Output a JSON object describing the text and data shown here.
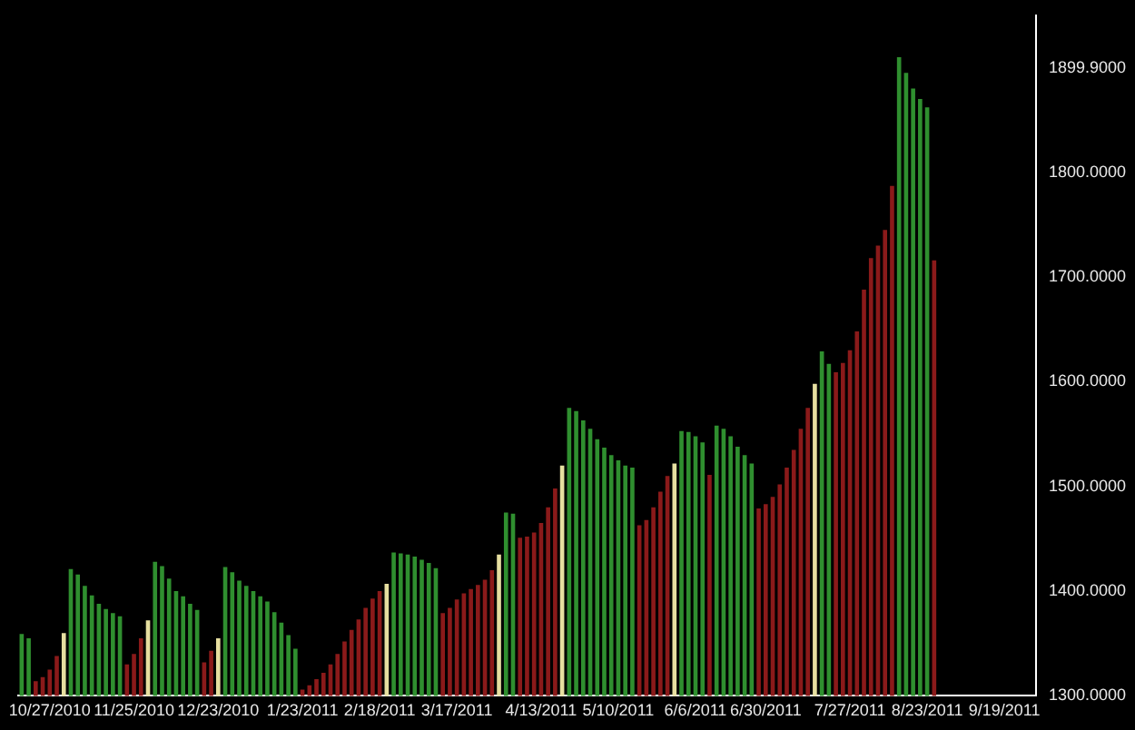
{
  "chart_data": {
    "type": "bar",
    "categories": [
      null,
      null,
      null,
      null,
      "10/27/2010",
      null,
      null,
      null,
      null,
      null,
      null,
      null,
      null,
      null,
      null,
      null,
      "11/25/2010",
      null,
      null,
      null,
      null,
      null,
      null,
      null,
      null,
      null,
      null,
      null,
      "12/23/2010",
      null,
      null,
      null,
      null,
      null,
      null,
      null,
      null,
      null,
      null,
      null,
      "1/23/2011",
      null,
      null,
      null,
      null,
      null,
      null,
      null,
      null,
      null,
      null,
      "2/18/2011",
      null,
      null,
      null,
      null,
      null,
      null,
      null,
      null,
      null,
      null,
      "3/17/2011",
      null,
      null,
      null,
      null,
      null,
      null,
      null,
      null,
      null,
      null,
      null,
      "4/13/2011",
      null,
      null,
      null,
      null,
      null,
      null,
      null,
      null,
      null,
      null,
      "5/10/2011",
      null,
      null,
      null,
      null,
      null,
      null,
      null,
      null,
      null,
      null,
      "6/6/2011",
      null,
      null,
      null,
      null,
      null,
      null,
      null,
      null,
      null,
      "6/30/2011",
      null,
      null,
      null,
      null,
      null,
      null,
      null,
      null,
      null,
      null,
      null,
      "7/27/2011",
      null,
      null,
      null,
      null,
      null,
      null,
      null,
      null,
      null,
      null,
      "8/23/2011",
      null,
      null,
      null,
      null,
      null,
      null,
      null,
      null,
      null,
      null,
      "9/19/2011",
      null,
      null,
      null,
      null
    ],
    "values": [
      1359,
      1355,
      1314,
      1318,
      1325,
      1338,
      1360,
      1421,
      1416,
      1405,
      1396,
      1388,
      1383,
      1379,
      1376,
      1330,
      1340,
      1355,
      1372,
      1428,
      1424,
      1412,
      1400,
      1395,
      1388,
      1382,
      1332,
      1343,
      1355,
      1423,
      1418,
      1410,
      1405,
      1400,
      1395,
      1390,
      1380,
      1370,
      1358,
      1345,
      1306,
      1310,
      1316,
      1322,
      1330,
      1340,
      1352,
      1363,
      1373,
      1384,
      1393,
      1400,
      1407,
      1437,
      1436,
      1435,
      1433,
      1430,
      1427,
      1422,
      1379,
      1384,
      1392,
      1398,
      1402,
      1406,
      1411,
      1420,
      1435,
      1475,
      1474,
      1451,
      1452,
      1456,
      1465,
      1480,
      1498,
      1520,
      1575,
      1572,
      1563,
      1555,
      1545,
      1537,
      1530,
      1525,
      1520,
      1518,
      1463,
      1468,
      1480,
      1495,
      1510,
      1522,
      1553,
      1552,
      1548,
      1542,
      1511,
      1558,
      1555,
      1548,
      1538,
      1530,
      1522,
      1479,
      1483,
      1490,
      1502,
      1518,
      1535,
      1555,
      1575,
      1598,
      1629,
      1617,
      1609,
      1618,
      1630,
      1648,
      1688,
      1718,
      1730,
      1745,
      1787,
      1910,
      1895,
      1880,
      1870,
      1862,
      1716,
      null,
      null,
      null,
      null,
      null,
      null,
      null,
      null,
      null,
      null,
      null,
      null,
      null,
      null
    ],
    "colors": [
      "#2f8f2f",
      "#2f8f2f",
      "#8b1a1a",
      "#8b1a1a",
      "#8b1a1a",
      "#8b1a1a",
      "#e6dfa0",
      "#2f8f2f",
      "#2f8f2f",
      "#2f8f2f",
      "#2f8f2f",
      "#2f8f2f",
      "#2f8f2f",
      "#2f8f2f",
      "#2f8f2f",
      "#8b1a1a",
      "#8b1a1a",
      "#8b1a1a",
      "#e6dfa0",
      "#2f8f2f",
      "#2f8f2f",
      "#2f8f2f",
      "#2f8f2f",
      "#2f8f2f",
      "#2f8f2f",
      "#2f8f2f",
      "#8b1a1a",
      "#8b1a1a",
      "#e6dfa0",
      "#2f8f2f",
      "#2f8f2f",
      "#2f8f2f",
      "#2f8f2f",
      "#2f8f2f",
      "#2f8f2f",
      "#2f8f2f",
      "#2f8f2f",
      "#2f8f2f",
      "#2f8f2f",
      "#2f8f2f",
      "#8b1a1a",
      "#8b1a1a",
      "#8b1a1a",
      "#8b1a1a",
      "#8b1a1a",
      "#8b1a1a",
      "#8b1a1a",
      "#8b1a1a",
      "#8b1a1a",
      "#8b1a1a",
      "#8b1a1a",
      "#8b1a1a",
      "#e6dfa0",
      "#2f8f2f",
      "#2f8f2f",
      "#2f8f2f",
      "#2f8f2f",
      "#2f8f2f",
      "#2f8f2f",
      "#2f8f2f",
      "#8b1a1a",
      "#8b1a1a",
      "#8b1a1a",
      "#8b1a1a",
      "#8b1a1a",
      "#8b1a1a",
      "#8b1a1a",
      "#8b1a1a",
      "#e6dfa0",
      "#2f8f2f",
      "#2f8f2f",
      "#8b1a1a",
      "#8b1a1a",
      "#8b1a1a",
      "#8b1a1a",
      "#8b1a1a",
      "#8b1a1a",
      "#e6dfa0",
      "#2f8f2f",
      "#2f8f2f",
      "#2f8f2f",
      "#2f8f2f",
      "#2f8f2f",
      "#2f8f2f",
      "#2f8f2f",
      "#2f8f2f",
      "#2f8f2f",
      "#2f8f2f",
      "#8b1a1a",
      "#8b1a1a",
      "#8b1a1a",
      "#8b1a1a",
      "#8b1a1a",
      "#e6dfa0",
      "#2f8f2f",
      "#2f8f2f",
      "#2f8f2f",
      "#2f8f2f",
      "#8b1a1a",
      "#2f8f2f",
      "#2f8f2f",
      "#2f8f2f",
      "#2f8f2f",
      "#2f8f2f",
      "#2f8f2f",
      "#8b1a1a",
      "#8b1a1a",
      "#8b1a1a",
      "#8b1a1a",
      "#8b1a1a",
      "#8b1a1a",
      "#8b1a1a",
      "#8b1a1a",
      "#e6dfa0",
      "#2f8f2f",
      "#2f8f2f",
      "#8b1a1a",
      "#8b1a1a",
      "#8b1a1a",
      "#8b1a1a",
      "#8b1a1a",
      "#8b1a1a",
      "#8b1a1a",
      "#8b1a1a",
      "#8b1a1a",
      "#2f8f2f",
      "#2f8f2f",
      "#2f8f2f",
      "#2f8f2f",
      "#2f8f2f",
      "#8b1a1a",
      "#8b1a1a",
      "#8b1a1a",
      "#8b1a1a",
      "#8b1a1a",
      "#8b1a1a",
      "#8b1a1a",
      "#8b1a1a",
      "#8b1a1a",
      "#8b1a1a",
      "#8b1a1a",
      "#8b1a1a",
      "#8b1a1a",
      "#8b1a1a",
      "#8b1a1a"
    ],
    "ylim": [
      1300,
      1950
    ],
    "yticks": [
      {
        "value": 1300,
        "label": "1300.0000"
      },
      {
        "value": 1400,
        "label": "1400.0000"
      },
      {
        "value": 1500,
        "label": "1500.0000"
      },
      {
        "value": 1600,
        "label": "1600.0000"
      },
      {
        "value": 1700,
        "label": "1700.0000"
      },
      {
        "value": 1800,
        "label": "1800.0000"
      },
      {
        "value": 1899.9,
        "label": "1899.9000"
      }
    ],
    "grid": false,
    "legend": false
  }
}
